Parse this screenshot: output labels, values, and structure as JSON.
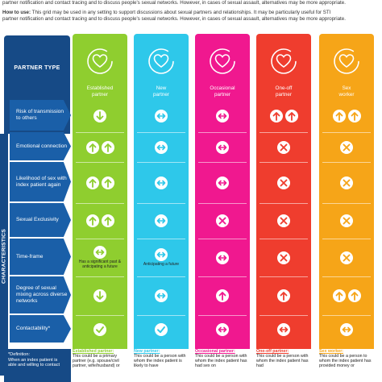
{
  "intro": {
    "line1": "partner notification and contact tracing and to discuss people's sexual networks. However, in cases of sexual assault, alternatives may be more appropriate.",
    "howto_label": "How to use:",
    "howto_text": " This grid may be used in any setting to support discussions about sexual partners and relationships. It may be particularly useful for STI",
    "line3": "partner notification and contact tracing and to discuss people's sexual networks. However, in cases of sexual assault, alternatives may be more appropriate."
  },
  "header": {
    "partner_type": "PARTNER TYPE"
  },
  "side_label": "CHARACTERISTICS",
  "columns": [
    {
      "label1": "Established",
      "label2": "partner",
      "color": "#8fce2f",
      "icon": "heart-cycle-icon"
    },
    {
      "label1": "New",
      "label2": "partner",
      "color": "#2ec8ea",
      "icon": "heart-arrow-icon"
    },
    {
      "label1": "Occasional",
      "label2": "partner",
      "color": "#f0188f",
      "icon": "heart-swirl-icon"
    },
    {
      "label1": "One-off",
      "label2": "partner",
      "color": "#ef3d2e",
      "icon": "heart-arrow-right-icon"
    },
    {
      "label1": "Sex",
      "label2": "worker",
      "color": "#f6a518",
      "icon": "heart-pound-icon"
    }
  ],
  "rows": [
    {
      "label": "Risk of transmission to others"
    },
    {
      "label": "Emotional connection"
    },
    {
      "label": "Likelihood of sex with index patient again"
    },
    {
      "label": "Sexual Exclusivity"
    },
    {
      "label": "Time-frame"
    },
    {
      "label": "Degree of sexual mixing across diverse networks"
    },
    {
      "label": "Contactability*"
    }
  ],
  "cells": [
    [
      [
        "down"
      ],
      [
        "leftright"
      ],
      [
        "leftright"
      ],
      [
        "up",
        "up"
      ],
      [
        "up",
        "up"
      ]
    ],
    [
      [
        "up",
        "up"
      ],
      [
        "leftright"
      ],
      [
        "leftright"
      ],
      [
        "cross"
      ],
      [
        "cross"
      ]
    ],
    [
      [
        "up",
        "up"
      ],
      [
        "leftright"
      ],
      [
        "leftright"
      ],
      [
        "cross"
      ],
      [
        "cross"
      ]
    ],
    [
      [
        "up",
        "up"
      ],
      [
        "leftright"
      ],
      [
        "cross"
      ],
      [
        "cross"
      ],
      [
        "cross"
      ]
    ],
    [
      [
        "leftright"
      ],
      [
        "leftright"
      ],
      [
        "leftright"
      ],
      [
        "cross"
      ],
      [
        "cross"
      ]
    ],
    [
      [
        "down"
      ],
      [
        "leftright"
      ],
      [
        "up"
      ],
      [
        "up"
      ],
      [
        "up",
        "up"
      ]
    ],
    [
      [
        "check"
      ],
      [
        "check"
      ],
      [
        "leftright"
      ],
      [
        "leftright"
      ],
      [
        "leftright"
      ]
    ]
  ],
  "timeframe_notes": [
    "Has a significant past & anticipating a future",
    "Anticipating a future"
  ],
  "definition": {
    "title": "*Definition:",
    "text": "When an index patient is able and willing to contact"
  },
  "footer": [
    {
      "title": "Established partner:",
      "text": "This could be a primary partner (e.g. spouse/civil partner, wife/husband) or"
    },
    {
      "title": "New partner:",
      "text": "This could be a person with whom the index patient is likely to have"
    },
    {
      "title": "Occasional partner:",
      "text": "This could be a person with whom the index patient has had sex on"
    },
    {
      "title": "One-off partner:",
      "text": "This could be a person with whom the index patient has had"
    },
    {
      "title": "Sex worker:",
      "text": "This could be a person to whom the index patient has provided money or"
    }
  ]
}
